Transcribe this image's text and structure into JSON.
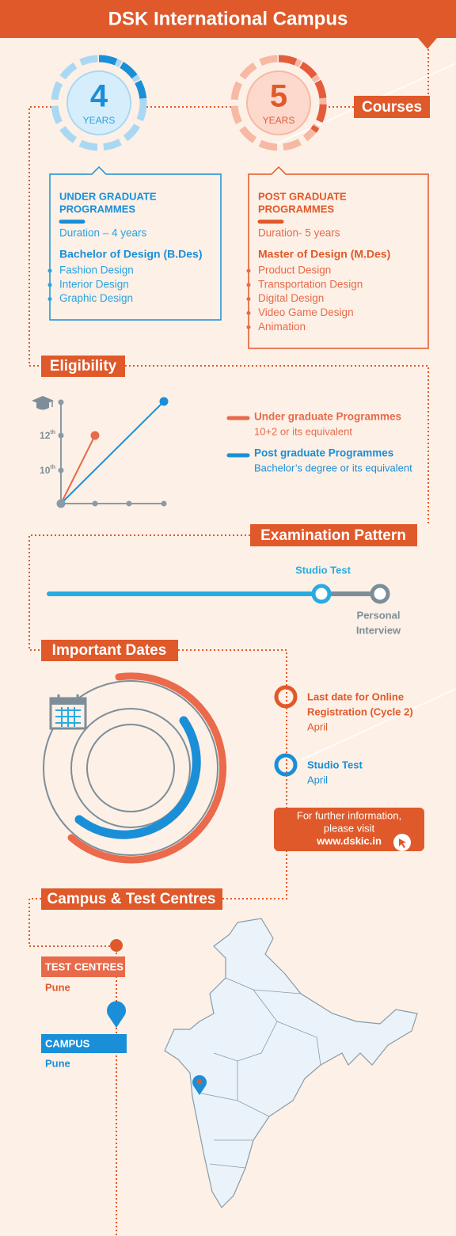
{
  "header": {
    "title": "DSK International Campus"
  },
  "courses": {
    "heading": "Courses",
    "ug": {
      "number": "4",
      "unit": "YEARS",
      "title_lines": [
        "UNDER GRADUATE",
        "PROGRAMMES"
      ],
      "duration": "Duration – 4 years",
      "degree": "Bachelor of Design (B.Des)",
      "items": [
        "Fashion Design",
        "Interior Design",
        "Graphic Design"
      ]
    },
    "pg": {
      "number": "5",
      "unit": "YEARS",
      "title_lines": [
        "POST GRADUATE",
        "PROGRAMMES"
      ],
      "duration": "Duration- 5 years",
      "degree": "Master of Design (M.Des)",
      "items": [
        "Product Design",
        "Transportation Design",
        "Digital Design",
        "Video Game Design",
        "Animation"
      ]
    }
  },
  "eligibility": {
    "heading": "Eligibility",
    "axis_labels": [
      {
        "text": "12",
        "sup": "th"
      },
      {
        "text": "10",
        "sup": "th"
      }
    ],
    "legend": [
      {
        "title": "Under graduate Programmes",
        "detail": "10+2 or its equivalent"
      },
      {
        "title": "Post graduate  Programmes",
        "detail": "Bachelor’s degree or its equivalent"
      }
    ]
  },
  "exam": {
    "heading": "Examination Pattern",
    "stages": [
      [
        "Studio Test"
      ],
      [
        "Personal",
        "Interview"
      ]
    ]
  },
  "dates": {
    "heading": "Important Dates",
    "events": [
      {
        "title_lines": [
          "Last date for Online",
          "Registration (Cycle 2)"
        ],
        "date": "April"
      },
      {
        "title_lines": [
          "Studio Test"
        ],
        "date": "April"
      }
    ],
    "info": {
      "lines": [
        "For further information,",
        "please visit"
      ],
      "link": "www.dskic.in"
    }
  },
  "campus": {
    "heading": "Campus & Test Centres",
    "test_centres": {
      "label": "TEST CENTRES",
      "city": "Pune"
    },
    "campus": {
      "label": "CAMPUS",
      "city": "Pune"
    }
  }
}
